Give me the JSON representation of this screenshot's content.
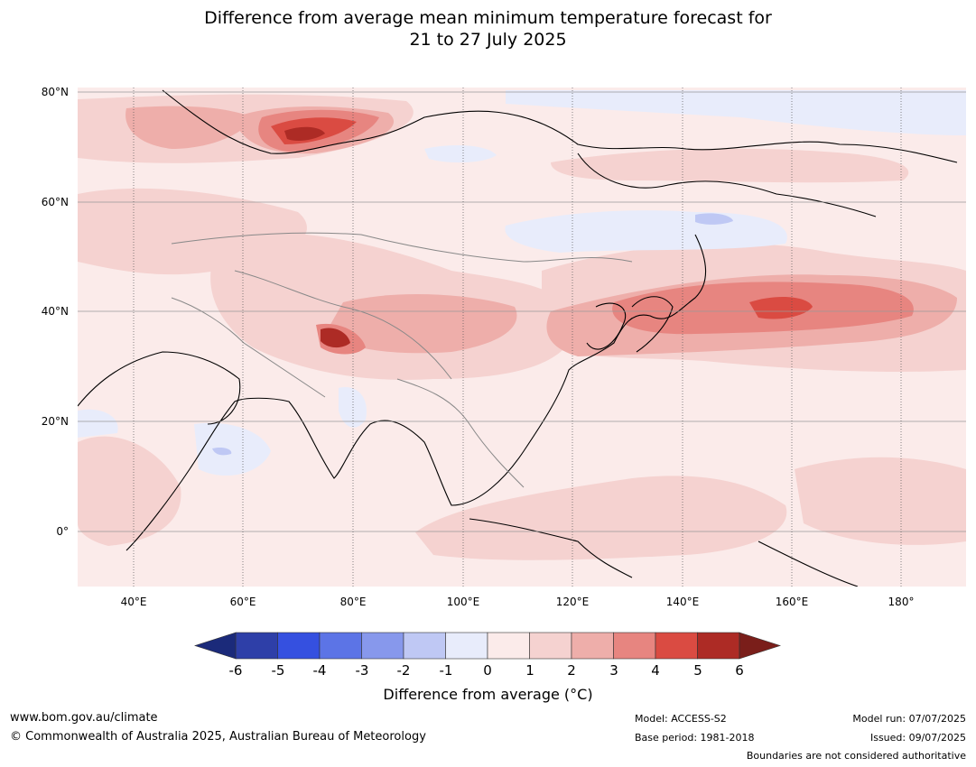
{
  "title": {
    "line1": "Difference from average mean minimum temperature forecast for",
    "line2": "21 to 27 July 2025"
  },
  "map": {
    "lat_ticks": [
      "80°N",
      "60°N",
      "40°N",
      "20°N",
      "0°"
    ],
    "lon_ticks": [
      "40°E",
      "60°E",
      "80°E",
      "100°E",
      "120°E",
      "140°E",
      "160°E",
      "180°"
    ],
    "background_color": "#fbebea"
  },
  "colorbar": {
    "ticks": [
      "-6",
      "-5",
      "-4",
      "-3",
      "-2",
      "-1",
      "0",
      "1",
      "2",
      "3",
      "4",
      "5",
      "6"
    ],
    "colors": [
      "#2e3fa8",
      "#3550e0",
      "#5c74e6",
      "#8798ec",
      "#bfc8f4",
      "#e8ecfb",
      "#fbebea",
      "#f5d2d0",
      "#eeaeaa",
      "#e78580",
      "#da4b42",
      "#ad2b25"
    ],
    "low_extend_color": "#1b2a7a",
    "high_extend_color": "#7a1e1a",
    "label": "Difference from average (°C)"
  },
  "footer": {
    "url": "www.bom.gov.au/climate",
    "copyright": "© Commonwealth of Australia 2025, Australian Bureau of Meteorology",
    "model": "Model: ACCESS-S2",
    "base_period": "Base period: 1981-2018",
    "model_run": "Model run: 07/07/2025",
    "issued": "Issued: 09/07/2025",
    "disclaimer": "Boundaries are not considered authoritative"
  }
}
